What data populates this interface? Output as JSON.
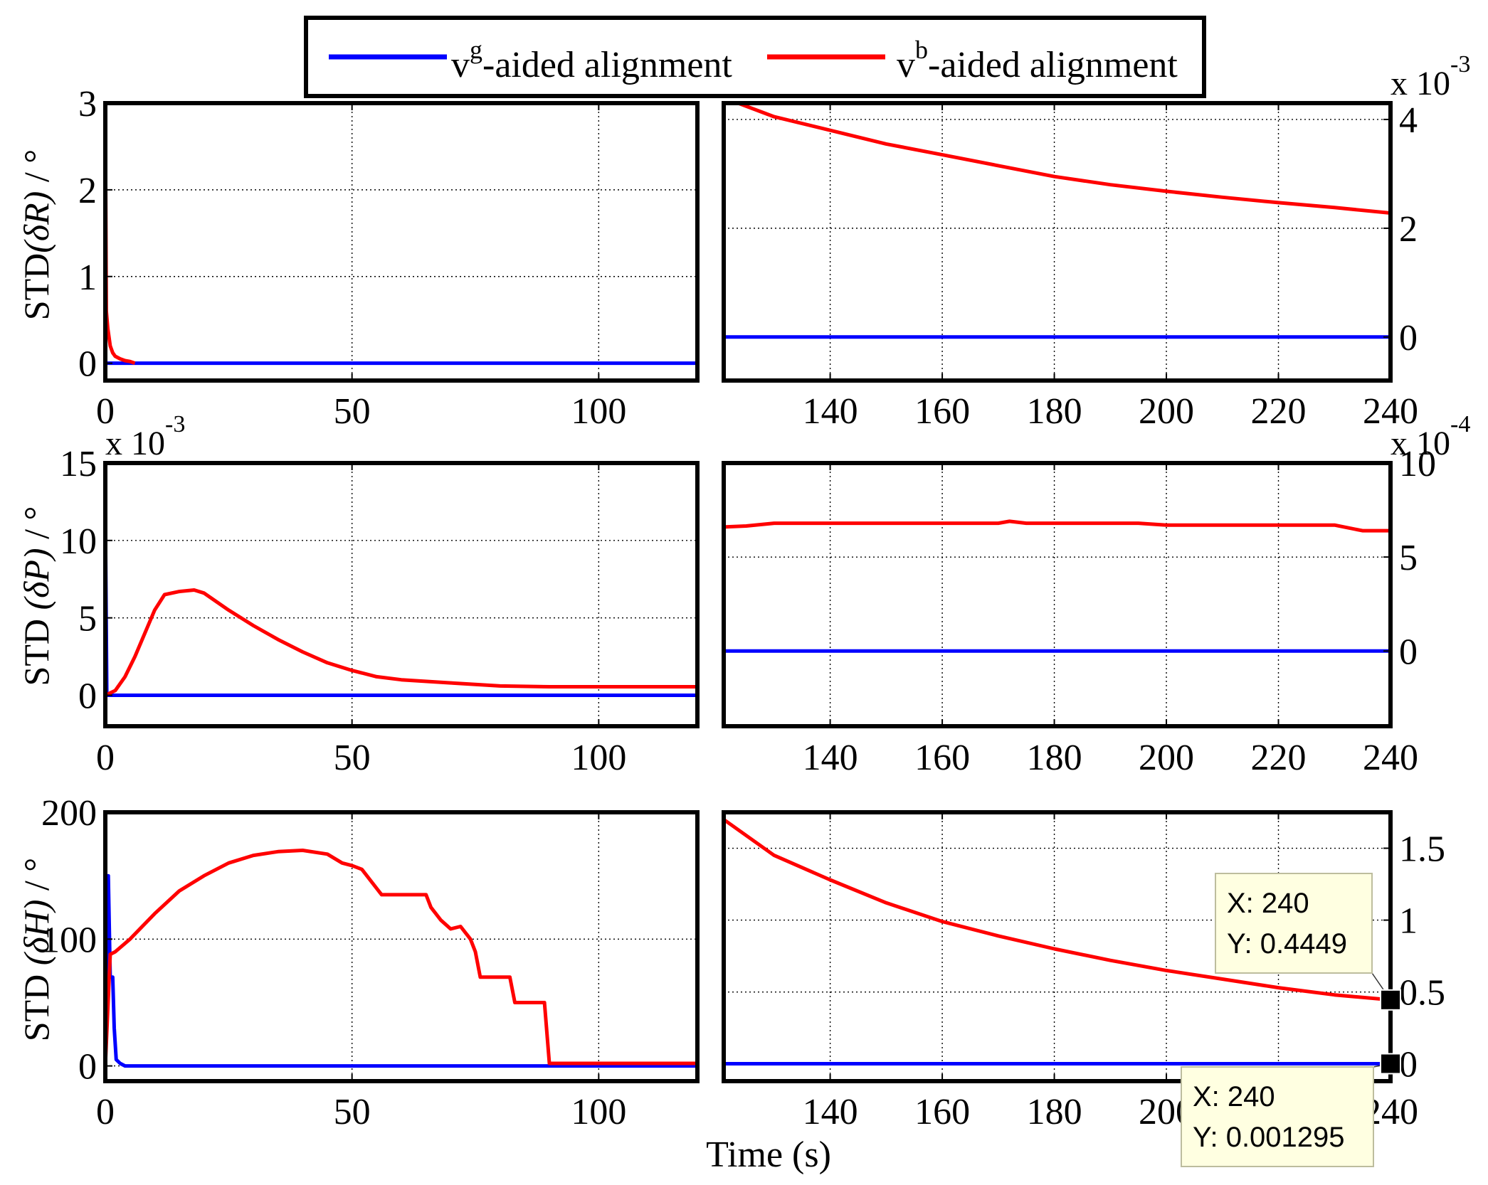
{
  "chart_data": {
    "type": "line",
    "legend": {
      "position": "top-center",
      "entries": [
        {
          "base": "v",
          "sup": "g",
          "text": "-aided alignment",
          "color": "#0000ff"
        },
        {
          "base": "v",
          "sup": "b",
          "text": "-aided alignment",
          "color": "#ff0000"
        }
      ]
    },
    "xlabel": "Time (s)",
    "colors": {
      "vg": "#0000ff",
      "vb": "#ff0000"
    },
    "rows": [
      {
        "ylabel": {
          "prefix": "STD",
          "var": "(δR)",
          "unit": " / °"
        },
        "left": {
          "xlim": [
            0,
            120
          ],
          "ylim": [
            -0.2,
            3
          ],
          "xticks": [
            0,
            50,
            100
          ],
          "yticks": [
            0,
            1,
            2,
            3
          ],
          "tick_labels_x": [
            "0",
            "50",
            "100"
          ],
          "tick_labels_y": [
            "0",
            "1",
            "2",
            "3"
          ],
          "exponent": "",
          "series": [
            {
              "name": "vg-aided alignment",
              "x": [
                0,
                120
              ],
              "y": [
                0.0,
                0.0
              ]
            },
            {
              "name": "vb-aided alignment",
              "x": [
                0,
                0.2,
                0.5,
                1,
                1.5,
                2,
                3,
                4,
                5,
                6
              ],
              "y": [
                2.9,
                0.6,
                0.4,
                0.2,
                0.12,
                0.08,
                0.05,
                0.03,
                0.02,
                0.0
              ]
            }
          ]
        },
        "right": {
          "xlim": [
            121,
            240
          ],
          "ylim": [
            -0.8,
            4.3
          ],
          "xticks": [
            140,
            160,
            180,
            200,
            220,
            240
          ],
          "yticks": [
            0,
            2,
            4
          ],
          "tick_labels_x": [
            "140",
            "160",
            "180",
            "200",
            "220",
            "240"
          ],
          "tick_labels_y": [
            "0",
            "2",
            "4"
          ],
          "exponent": "x 10-3",
          "series": [
            {
              "name": "vg-aided alignment",
              "x": [
                121,
                240
              ],
              "y": [
                0.0,
                0.0
              ]
            },
            {
              "name": "vb-aided alignment",
              "x": [
                121,
                130,
                140,
                150,
                160,
                170,
                180,
                190,
                200,
                210,
                220,
                230,
                240
              ],
              "y": [
                4.4,
                4.05,
                3.8,
                3.55,
                3.35,
                3.15,
                2.95,
                2.8,
                2.68,
                2.57,
                2.47,
                2.38,
                2.28
              ]
            }
          ]
        }
      },
      {
        "ylabel": {
          "prefix": "STD  ",
          "var": "(δP)",
          "unit": " / °"
        },
        "left": {
          "xlim": [
            0,
            120
          ],
          "ylim": [
            -2,
            15
          ],
          "xticks": [
            0,
            50,
            100
          ],
          "yticks": [
            0,
            5,
            10,
            15
          ],
          "tick_labels_x": [
            "0",
            "50",
            "100"
          ],
          "tick_labels_y": [
            "0",
            "5",
            "10",
            "15"
          ],
          "exponent": "x 10-3",
          "series": [
            {
              "name": "vg-aided alignment",
              "x": [
                0,
                0.3,
                0.5,
                120
              ],
              "y": [
                12,
                0.0,
                0.0,
                0.0
              ]
            },
            {
              "name": "vb-aided alignment",
              "x": [
                0,
                2,
                4,
                6,
                8,
                10,
                12,
                15,
                18,
                20,
                25,
                30,
                35,
                40,
                45,
                50,
                55,
                60,
                70,
                80,
                90,
                100,
                110,
                120
              ],
              "y": [
                0,
                0.3,
                1.2,
                2.5,
                4.0,
                5.5,
                6.5,
                6.7,
                6.8,
                6.6,
                5.5,
                4.5,
                3.6,
                2.8,
                2.1,
                1.6,
                1.2,
                1.0,
                0.8,
                0.6,
                0.55,
                0.55,
                0.55,
                0.55
              ]
            }
          ]
        },
        "right": {
          "xlim": [
            121,
            240
          ],
          "ylim": [
            -4,
            10
          ],
          "xticks": [
            140,
            160,
            180,
            200,
            220,
            240
          ],
          "yticks": [
            0,
            5,
            10
          ],
          "tick_labels_x": [
            "140",
            "160",
            "180",
            "200",
            "220",
            "240"
          ],
          "tick_labels_y": [
            "0",
            "5",
            "10"
          ],
          "exponent": "x 10-4",
          "series": [
            {
              "name": "vg-aided alignment",
              "x": [
                121,
                240
              ],
              "y": [
                0.0,
                0.0
              ]
            },
            {
              "name": "vb-aided alignment",
              "x": [
                121,
                125,
                130,
                150,
                170,
                172,
                175,
                195,
                200,
                230,
                235,
                240
              ],
              "y": [
                6.6,
                6.65,
                6.8,
                6.8,
                6.8,
                6.9,
                6.8,
                6.8,
                6.7,
                6.7,
                6.4,
                6.4
              ]
            }
          ]
        }
      },
      {
        "ylabel": {
          "prefix": "STD  ",
          "var": "(δH)",
          "unit": " / °"
        },
        "left": {
          "xlim": [
            0,
            120
          ],
          "ylim": [
            -12,
            200
          ],
          "xticks": [
            0,
            50,
            100
          ],
          "yticks": [
            0,
            100,
            200
          ],
          "tick_labels_x": [
            "0",
            "50",
            "100"
          ],
          "tick_labels_y": [
            "0",
            "100",
            "200"
          ],
          "exponent": "",
          "series": [
            {
              "name": "vg-aided alignment",
              "x": [
                0,
                0.3,
                0.6,
                1.0,
                1.5,
                1.8,
                2.2,
                3,
                4,
                120
              ],
              "y": [
                165,
                70,
                150,
                70,
                70,
                30,
                5,
                2,
                0,
                0
              ]
            },
            {
              "name": "vb-aided alignment",
              "x": [
                0,
                1,
                2,
                5,
                10,
                15,
                20,
                25,
                30,
                35,
                40,
                45,
                48,
                50,
                52,
                55,
                56,
                65,
                66,
                68,
                70,
                72,
                74,
                75,
                76,
                82,
                83,
                89,
                90,
                100,
                110,
                120
              ],
              "y": [
                0,
                88,
                90,
                100,
                120,
                138,
                150,
                160,
                166,
                169,
                170,
                167,
                160,
                158,
                155,
                140,
                135,
                135,
                125,
                115,
                108,
                110,
                100,
                90,
                70,
                70,
                50,
                50,
                2,
                2,
                2,
                2
              ]
            }
          ]
        },
        "right": {
          "xlim": [
            121,
            240
          ],
          "ylim": [
            -0.12,
            1.75
          ],
          "xticks": [
            140,
            160,
            180,
            200,
            220,
            240
          ],
          "yticks": [
            0,
            0.5,
            1,
            1.5
          ],
          "tick_labels_x": [
            "140",
            "160",
            "180",
            "200",
            "220",
            "240"
          ],
          "tick_labels_y": [
            "0",
            "0.5",
            "1",
            "1.5"
          ],
          "exponent": "",
          "series": [
            {
              "name": "vg-aided alignment",
              "x": [
                121,
                240
              ],
              "y": [
                0.0013,
                0.0013
              ]
            },
            {
              "name": "vb-aided alignment",
              "x": [
                121,
                130,
                140,
                150,
                160,
                170,
                180,
                190,
                200,
                210,
                220,
                230,
                240
              ],
              "y": [
                1.7,
                1.45,
                1.28,
                1.12,
                0.99,
                0.89,
                0.8,
                0.72,
                0.65,
                0.59,
                0.53,
                0.48,
                0.445
              ]
            }
          ]
        }
      }
    ],
    "datatips": [
      {
        "x_label": "X: 240",
        "y_label": "Y: 0.4449",
        "x": 240,
        "y": 0.4449
      },
      {
        "x_label": "X: 240",
        "y_label": "Y: 0.001295",
        "x": 240,
        "y": 0.001295
      }
    ]
  }
}
